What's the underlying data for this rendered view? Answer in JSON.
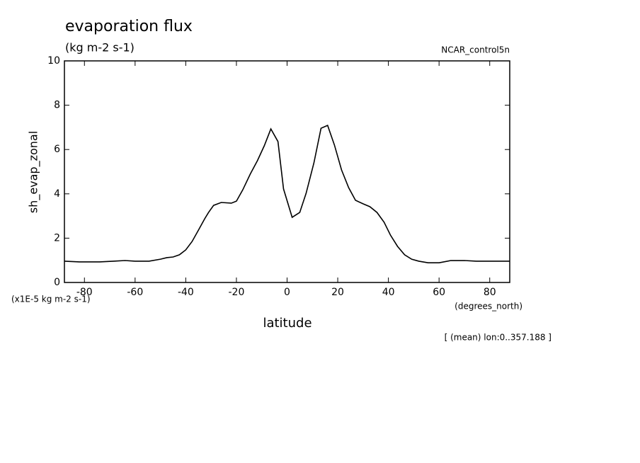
{
  "chart_data": {
    "type": "line",
    "title": "evaporation flux",
    "subtitle": "(kg m-2 s-1)",
    "dataset": "NCAR_control5n",
    "y_label": "sh_evap_zonal",
    "y_units": "(x1E-5 kg m-2 s-1)",
    "x_label": "latitude",
    "x_units": "(degrees_north)",
    "annotation": "[ (mean) lon:0..357.188 ]",
    "xlim": [
      -87.9,
      87.9
    ],
    "ylim": [
      0,
      10
    ],
    "xticks": [
      -80,
      -60,
      -40,
      -20,
      0,
      20,
      40,
      60,
      80
    ],
    "yticks": [
      0,
      2,
      4,
      6,
      8,
      10
    ],
    "grid": false,
    "series": [
      {
        "color": "#000000",
        "x": [
          -87.9,
          -82,
          -74,
          -68.5,
          -64,
          -60,
          -54.5,
          -50,
          -47.5,
          -45,
          -42.5,
          -40,
          -37.5,
          -35,
          -32.5,
          -31,
          -29,
          -26,
          -22,
          -20,
          -17.5,
          -14.5,
          -11.7,
          -9,
          -6.4,
          -3.6,
          -1.4,
          2,
          5,
          7.5,
          10.6,
          13.4,
          16,
          18.7,
          21.5,
          24.3,
          27,
          30,
          32.7,
          35.5,
          38.3,
          40.8,
          43.6,
          46.4,
          49.2,
          52,
          55.7,
          60,
          64.6,
          70,
          74.7,
          87.9
        ],
        "values": [
          0.96,
          0.93,
          0.93,
          0.96,
          0.99,
          0.96,
          0.96,
          1.05,
          1.12,
          1.15,
          1.25,
          1.47,
          1.85,
          2.36,
          2.88,
          3.16,
          3.48,
          3.61,
          3.58,
          3.67,
          4.18,
          4.9,
          5.5,
          6.17,
          6.93,
          6.36,
          4.22,
          2.94,
          3.16,
          4.02,
          5.4,
          6.96,
          7.09,
          6.2,
          5.08,
          4.28,
          3.71,
          3.55,
          3.42,
          3.16,
          2.72,
          2.14,
          1.63,
          1.25,
          1.05,
          0.96,
          0.89,
          0.89,
          0.99,
          0.99,
          0.96,
          0.96
        ]
      }
    ]
  }
}
